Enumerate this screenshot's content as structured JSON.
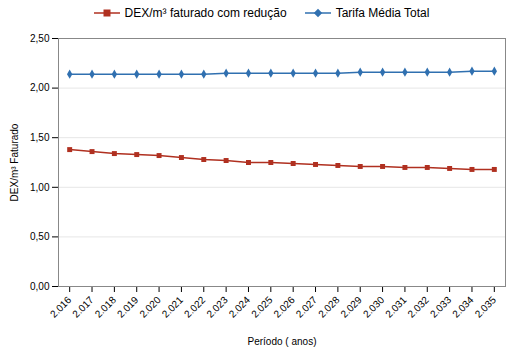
{
  "chart_data": {
    "type": "line",
    "x": [
      2016,
      2017,
      2018,
      2019,
      2020,
      2021,
      2022,
      2023,
      2024,
      2025,
      2026,
      2027,
      2028,
      2029,
      2030,
      2031,
      2032,
      2033,
      2034,
      2035
    ],
    "series": [
      {
        "name": "DEX/m³ faturado com redução",
        "color": "#b03020",
        "marker": "square",
        "values": [
          1.38,
          1.36,
          1.34,
          1.33,
          1.32,
          1.3,
          1.28,
          1.27,
          1.25,
          1.25,
          1.24,
          1.23,
          1.22,
          1.21,
          1.21,
          1.2,
          1.2,
          1.19,
          1.18,
          1.18
        ]
      },
      {
        "name": "Tarifa Média Total",
        "color": "#3070b0",
        "marker": "diamond",
        "values": [
          2.14,
          2.14,
          2.14,
          2.14,
          2.14,
          2.14,
          2.14,
          2.15,
          2.15,
          2.15,
          2.15,
          2.15,
          2.15,
          2.16,
          2.16,
          2.16,
          2.16,
          2.16,
          2.17,
          2.17
        ]
      }
    ],
    "xlabel": "Período ( anos)",
    "ylabel": "DEX/m³ Faturado",
    "xlim": [
      2015.5,
      2035.5
    ],
    "xticks": [
      {
        "value": 2016,
        "label": "2.016"
      },
      {
        "value": 2017,
        "label": "2.017"
      },
      {
        "value": 2018,
        "label": "2.018"
      },
      {
        "value": 2019,
        "label": "2.019"
      },
      {
        "value": 2020,
        "label": "2.020"
      },
      {
        "value": 2021,
        "label": "2.021"
      },
      {
        "value": 2022,
        "label": "2.022"
      },
      {
        "value": 2023,
        "label": "2.023"
      },
      {
        "value": 2024,
        "label": "2.024"
      },
      {
        "value": 2025,
        "label": "2.025"
      },
      {
        "value": 2026,
        "label": "2.026"
      },
      {
        "value": 2027,
        "label": "2.027"
      },
      {
        "value": 2028,
        "label": "2.028"
      },
      {
        "value": 2029,
        "label": "2.029"
      },
      {
        "value": 2030,
        "label": "2.030"
      },
      {
        "value": 2031,
        "label": "2.031"
      },
      {
        "value": 2032,
        "label": "2.032"
      },
      {
        "value": 2033,
        "label": "2.033"
      },
      {
        "value": 2034,
        "label": "2.034"
      },
      {
        "value": 2035,
        "label": "2.035"
      }
    ],
    "ylim": [
      0.0,
      2.5
    ],
    "yticks": [
      {
        "value": 0.0,
        "label": "0,00"
      },
      {
        "value": 0.5,
        "label": "0,50"
      },
      {
        "value": 1.0,
        "label": "1,00"
      },
      {
        "value": 1.5,
        "label": "1,50"
      },
      {
        "value": 2.0,
        "label": "2,00"
      },
      {
        "value": 2.5,
        "label": "2,50"
      }
    ],
    "grid": "y",
    "legend": "top"
  }
}
